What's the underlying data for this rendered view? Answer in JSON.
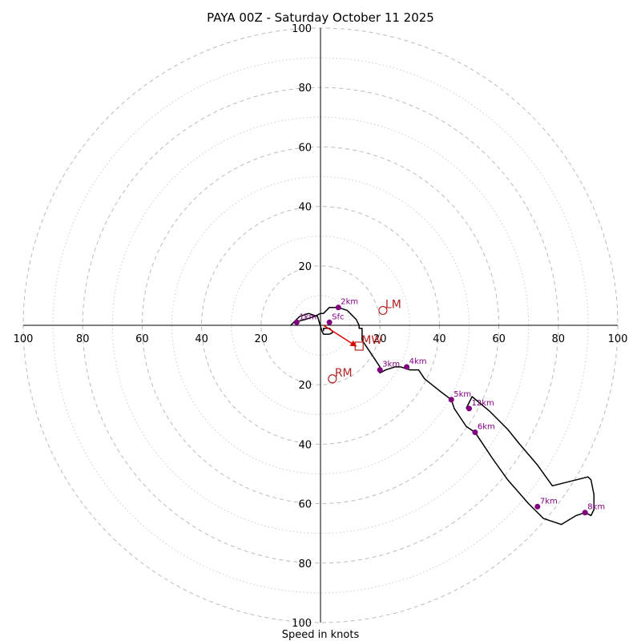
{
  "chart_data": {
    "type": "hodograph",
    "title": "PAYA 00Z - Saturday October 11 2025",
    "xlabel": "Speed in knots",
    "rlim": [
      0,
      100
    ],
    "ring_major": [
      20,
      40,
      60,
      80,
      100
    ],
    "ring_minor": [
      10,
      30,
      50,
      70,
      90
    ],
    "tick_labels": {
      "left": [
        "100",
        "80",
        "60",
        "40",
        "20"
      ],
      "right": [
        "20",
        "40",
        "60",
        "80",
        "100"
      ],
      "top": [
        "100",
        "80",
        "60",
        "40",
        "20"
      ],
      "bottom": [
        "20",
        "40",
        "60",
        "80",
        "100"
      ]
    },
    "trace": {
      "color": "#000000",
      "points": [
        [
          1,
          -2
        ],
        [
          1,
          -1
        ],
        [
          3,
          -1
        ],
        [
          4,
          -2
        ],
        [
          4,
          -2.5
        ],
        [
          3,
          -3
        ],
        [
          1,
          -3
        ],
        [
          0.5,
          -2
        ],
        [
          -1,
          3
        ],
        [
          -4,
          4
        ],
        [
          -7,
          3
        ],
        [
          -9,
          1
        ],
        [
          -10,
          0
        ],
        [
          -9,
          1
        ],
        [
          -5,
          2
        ],
        [
          -2,
          3
        ],
        [
          0,
          4
        ],
        [
          1,
          4
        ],
        [
          3,
          6
        ],
        [
          4,
          6
        ],
        [
          6,
          6
        ],
        [
          9,
          5
        ],
        [
          10,
          4
        ],
        [
          12,
          2
        ],
        [
          13,
          0
        ],
        [
          13,
          -1
        ],
        [
          14,
          -1
        ],
        [
          14,
          -3
        ],
        [
          14,
          -5
        ],
        [
          16,
          -8
        ],
        [
          18,
          -11
        ],
        [
          20,
          -14
        ],
        [
          20,
          -16
        ],
        [
          22,
          -15
        ],
        [
          25,
          -14
        ],
        [
          27,
          -14
        ],
        [
          30,
          -15
        ],
        [
          33,
          -15
        ],
        [
          35,
          -18
        ],
        [
          40,
          -22
        ],
        [
          44,
          -25
        ],
        [
          45,
          -28
        ],
        [
          47,
          -31
        ],
        [
          49,
          -34
        ],
        [
          52,
          -36
        ],
        [
          54,
          -39
        ],
        [
          58,
          -45
        ],
        [
          63,
          -52
        ],
        [
          70,
          -60
        ],
        [
          75,
          -65
        ],
        [
          81,
          -67
        ],
        [
          86,
          -64
        ],
        [
          89,
          -63
        ],
        [
          91,
          -64
        ],
        [
          92,
          -62
        ],
        [
          92,
          -57
        ],
        [
          91,
          -52
        ],
        [
          90,
          -51
        ],
        [
          78,
          -54
        ],
        [
          73,
          -47
        ],
        [
          67,
          -40
        ],
        [
          63,
          -35
        ],
        [
          57,
          -29
        ],
        [
          51,
          -24
        ],
        [
          49,
          -28
        ]
      ]
    },
    "height_markers": [
      {
        "label": "Sfc",
        "u": 3,
        "v": 1
      },
      {
        "label": "1km",
        "u": -8,
        "v": 1
      },
      {
        "label": "2km",
        "u": 6,
        "v": 6
      },
      {
        "label": "3km",
        "u": 20,
        "v": -15
      },
      {
        "label": "4km",
        "u": 29,
        "v": -14
      },
      {
        "label": "5km",
        "u": 44,
        "v": -25
      },
      {
        "label": "12km",
        "u": 50,
        "v": -28
      },
      {
        "label": "6km",
        "u": 52,
        "v": -36
      },
      {
        "label": "7km",
        "u": 73,
        "v": -61
      },
      {
        "label": "8km",
        "u": 89,
        "v": -63
      }
    ],
    "storm_motion": {
      "color": "#b22222",
      "arrow_color": "#e00000",
      "LM": {
        "label": "LM",
        "u": 21,
        "v": 5
      },
      "RM": {
        "label": "RM",
        "u": 4,
        "v": -18
      },
      "MW": {
        "label": "MW",
        "u": 13,
        "v": -7
      },
      "arrow_from": [
        1,
        0
      ],
      "arrow_to": [
        12,
        -7
      ]
    }
  }
}
